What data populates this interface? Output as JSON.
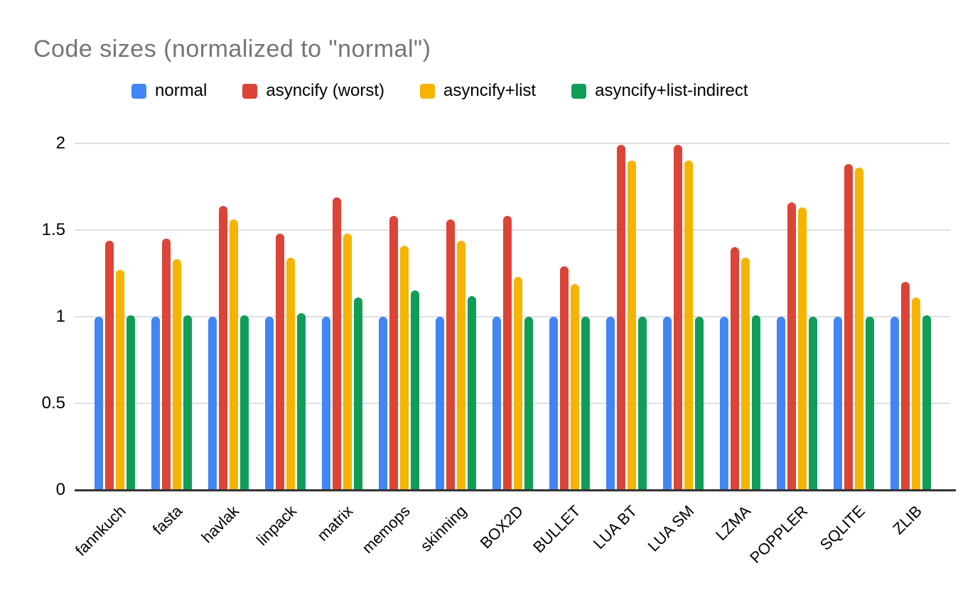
{
  "title": "Code sizes (normalized to \"normal\")",
  "chart_data": {
    "type": "bar",
    "title": "Code sizes (normalized to \"normal\")",
    "title_color": "#757575",
    "categories": [
      "fannkuch",
      "fasta",
      "havlak",
      "linpack",
      "matrix",
      "memops",
      "skinning",
      "BOX2D",
      "BULLET",
      "LUA BT",
      "LUA SM",
      "LZMA",
      "POPPLER",
      "SQLITE",
      "ZLIB"
    ],
    "series": [
      {
        "name": "normal",
        "color": "#4285F4",
        "values": [
          1.0,
          1.0,
          1.0,
          1.0,
          1.0,
          1.0,
          1.0,
          1.0,
          1.0,
          1.0,
          1.0,
          1.0,
          1.0,
          1.0,
          1.0
        ]
      },
      {
        "name": "asyncify (worst)",
        "color": "#DB4437",
        "values": [
          1.44,
          1.45,
          1.64,
          1.48,
          1.69,
          1.58,
          1.56,
          1.58,
          1.29,
          1.99,
          1.99,
          1.4,
          1.66,
          1.88,
          1.2
        ]
      },
      {
        "name": "asyncify+list",
        "color": "#F4B400",
        "values": [
          1.27,
          1.33,
          1.56,
          1.34,
          1.48,
          1.41,
          1.44,
          1.23,
          1.19,
          1.9,
          1.9,
          1.34,
          1.63,
          1.86,
          1.11
        ]
      },
      {
        "name": "asyncify+list-indirect",
        "color": "#0F9D58",
        "values": [
          1.01,
          1.01,
          1.01,
          1.02,
          1.11,
          1.15,
          1.12,
          1.0,
          1.0,
          1.0,
          1.0,
          1.01,
          1.0,
          1.0,
          1.01
        ]
      }
    ],
    "ylim": [
      0,
      2
    ],
    "yticks": [
      0,
      0.5,
      1,
      1.5,
      2
    ],
    "ytick_labels": [
      "0",
      "0.5",
      "1",
      "1.5",
      "2"
    ],
    "grid": true,
    "legend_position": "top",
    "axis_color": "#333333",
    "gridline_color": "#e0e0e0",
    "label_color": "#000000"
  }
}
